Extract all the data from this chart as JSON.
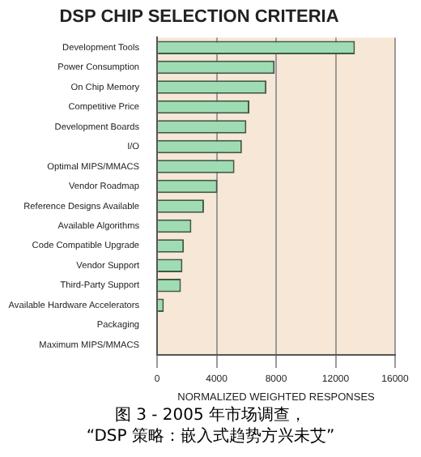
{
  "chart_data": {
    "type": "bar",
    "orientation": "horizontal",
    "title": "DSP CHIP SELECTION CRITERIA",
    "xlabel": "NORMALIZED WEIGHTED RESPONSES",
    "categories": [
      "Development Tools",
      "Power Consumption",
      "On Chip Memory",
      "Competitive Price",
      "Development Boards",
      "I/O",
      "Optimal MIPS/MMACS",
      "Vendor Roadmap",
      "Reference Designs Available",
      "Available Algorithms",
      "Code Compatible Upgrade",
      "Vendor Support",
      "Third-Party Support",
      "Available Hardware Accelerators",
      "Packaging",
      "Maximum MIPS/MMACS"
    ],
    "values": [
      13300,
      7900,
      7350,
      6200,
      6000,
      5700,
      5200,
      4050,
      3150,
      2300,
      1800,
      1700,
      1600,
      450,
      0,
      0
    ],
    "color": "#9fdcb4",
    "xlim": [
      0,
      16000
    ],
    "xticks": [
      0,
      4000,
      8000,
      12000,
      16000
    ],
    "grid": "x",
    "legend": false,
    "annotations": [
      "图 3 - 2005 年市场调查，",
      "“DSP 策略：嵌入式趋势方兴未艾”"
    ]
  }
}
